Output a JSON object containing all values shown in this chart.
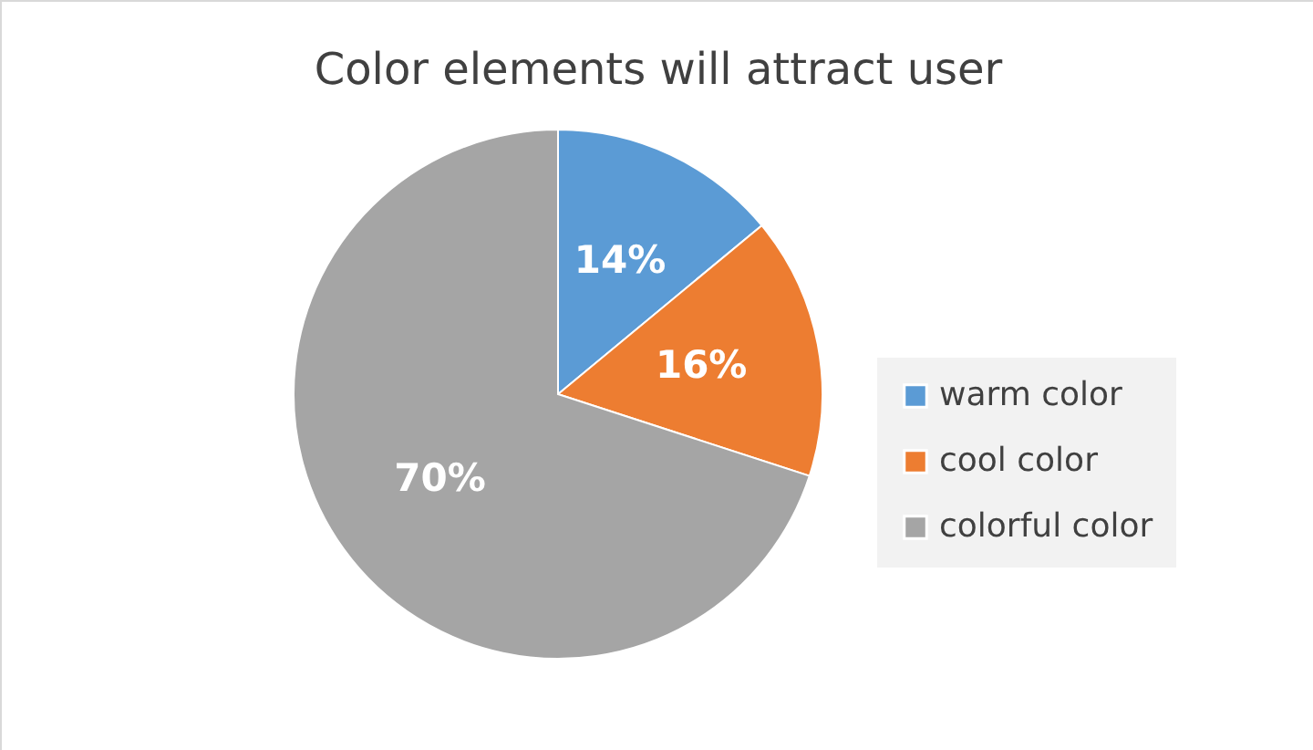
{
  "chart_data": {
    "type": "pie",
    "title": "Color elements will attract user",
    "categories": [
      "warm color",
      "cool color",
      "colorful color"
    ],
    "values": [
      14,
      16,
      70
    ],
    "value_labels": [
      "14%",
      "16%",
      "70%"
    ],
    "colors": [
      "#5b9bd5",
      "#ed7d31",
      "#a5a5a5"
    ],
    "legend": "right"
  }
}
